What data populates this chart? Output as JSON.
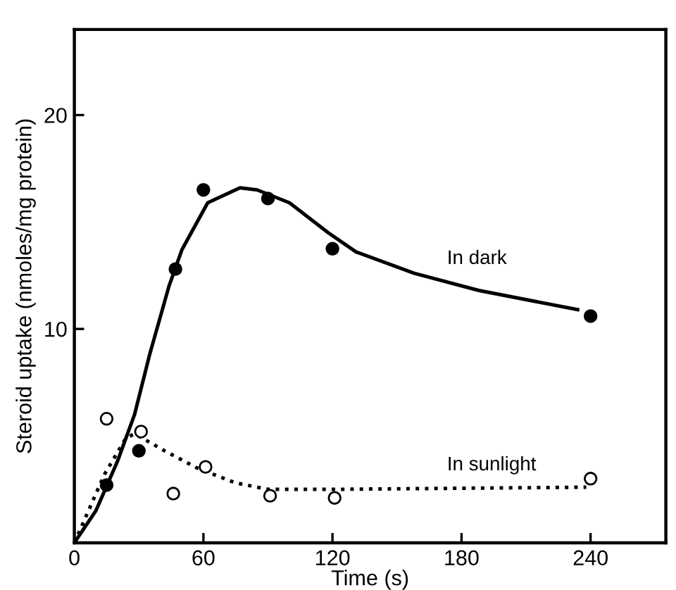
{
  "chart_data": {
    "type": "scatter",
    "xlabel": "Time (s)",
    "ylabel": "Steroid uptake (nmoles/mg protein)",
    "xlim": [
      0,
      275
    ],
    "ylim": [
      0,
      24
    ],
    "xticks": [
      0,
      60,
      120,
      180,
      240
    ],
    "yticks": [
      {
        "value": 0,
        "label": null
      },
      10,
      20
    ],
    "grid": false,
    "legend": false,
    "marker": "circle",
    "series": [
      {
        "color": "#000000",
        "x": [
          15,
          30,
          47,
          60,
          90,
          120,
          240
        ],
        "values": [
          2.7,
          4.3,
          12.8,
          16.5,
          16.1,
          13.75,
          10.6
        ]
      },
      {
        "color": "#ffffff",
        "x": [
          15,
          31,
          46,
          61,
          91,
          121,
          240
        ],
        "values": [
          5.8,
          5.2,
          2.3,
          3.55,
          2.2,
          2.1,
          3.0
        ]
      },
      {
        "type": "line",
        "name": "In dark",
        "color": "#000000",
        "line_style": "solid",
        "marker": "none",
        "x": [
          0,
          10,
          20,
          28,
          35,
          44,
          50,
          62,
          77,
          85,
          100,
          118,
          131,
          158,
          188,
          234
        ],
        "values": [
          0,
          1.5,
          3.8,
          6,
          8.8,
          12,
          13.7,
          15.9,
          16.6,
          16.5,
          15.9,
          14.5,
          13.6,
          12.6,
          11.8,
          10.9
        ]
      },
      {
        "type": "line",
        "name": "In sunlight",
        "color": "#000000",
        "line_style": "dotted",
        "marker": "none",
        "x": [
          0,
          14,
          24,
          28,
          42,
          57,
          75,
          90,
          121,
          238
        ],
        "values": [
          0,
          3.2,
          4.9,
          5.1,
          4.3,
          3.5,
          2.8,
          2.5,
          2.5,
          2.6
        ]
      }
    ]
  }
}
